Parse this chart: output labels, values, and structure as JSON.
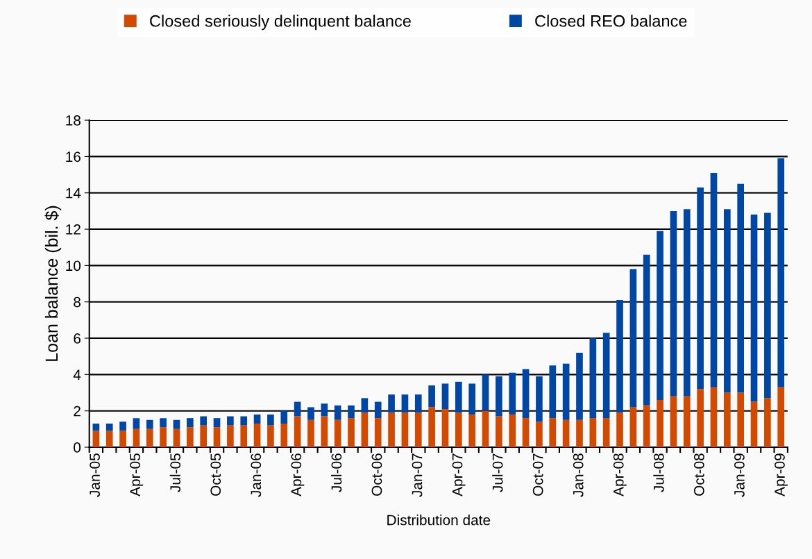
{
  "chart_data": {
    "type": "bar",
    "stacked": true,
    "xlabel": "Distribution date",
    "ylabel": "Loan balance (bil. $)",
    "categories": [
      "Jan-05",
      null,
      null,
      "Apr-05",
      null,
      null,
      "Jul-05",
      null,
      null,
      "Oct-05",
      null,
      null,
      "Jan-06",
      null,
      null,
      "Apr-06",
      null,
      null,
      "Jul-06",
      null,
      null,
      "Oct-06",
      null,
      null,
      "Jan-07",
      null,
      null,
      "Apr-07",
      null,
      null,
      "Jul-07",
      null,
      null,
      "Oct-07",
      null,
      null,
      "Jan-08",
      null,
      null,
      "Apr-08",
      null,
      null,
      "Jul-08",
      null,
      null,
      "Oct-08",
      null,
      null,
      "Jan-09",
      null,
      null,
      "Apr-09"
    ],
    "series": [
      {
        "name": "Closed seriously delinquent balance",
        "color": "#d24a00",
        "values": [
          0.9,
          0.9,
          0.9,
          1.0,
          1.0,
          1.1,
          1.0,
          1.1,
          1.2,
          1.1,
          1.2,
          1.2,
          1.3,
          1.2,
          1.3,
          1.7,
          1.5,
          1.7,
          1.5,
          1.6,
          1.9,
          1.6,
          1.9,
          1.9,
          1.9,
          2.2,
          2.1,
          1.9,
          1.8,
          2.0,
          1.7,
          1.8,
          1.6,
          1.4,
          1.6,
          1.5,
          1.5,
          1.6,
          1.6,
          1.9,
          2.2,
          2.3,
          2.6,
          2.8,
          2.8,
          3.2,
          3.3,
          3.0,
          3.0,
          2.5,
          2.7,
          3.3
        ]
      },
      {
        "name": "Closed REO balance",
        "color": "#0047a5",
        "values": [
          0.4,
          0.4,
          0.5,
          0.6,
          0.5,
          0.5,
          0.5,
          0.5,
          0.5,
          0.5,
          0.5,
          0.5,
          0.5,
          0.6,
          0.7,
          0.8,
          0.7,
          0.7,
          0.8,
          0.7,
          0.8,
          0.9,
          1.0,
          1.0,
          1.0,
          1.2,
          1.4,
          1.7,
          1.7,
          2.0,
          2.2,
          2.3,
          2.7,
          2.5,
          2.9,
          3.1,
          3.7,
          4.4,
          4.7,
          6.2,
          7.6,
          8.3,
          9.3,
          10.2,
          10.3,
          11.1,
          11.8,
          10.1,
          11.5,
          10.3,
          10.2,
          12.6
        ]
      }
    ],
    "ylim": [
      0,
      18
    ],
    "yticks": [
      0,
      2,
      4,
      6,
      8,
      10,
      12,
      14,
      16,
      18
    ],
    "grid": "y",
    "legend": "top"
  }
}
